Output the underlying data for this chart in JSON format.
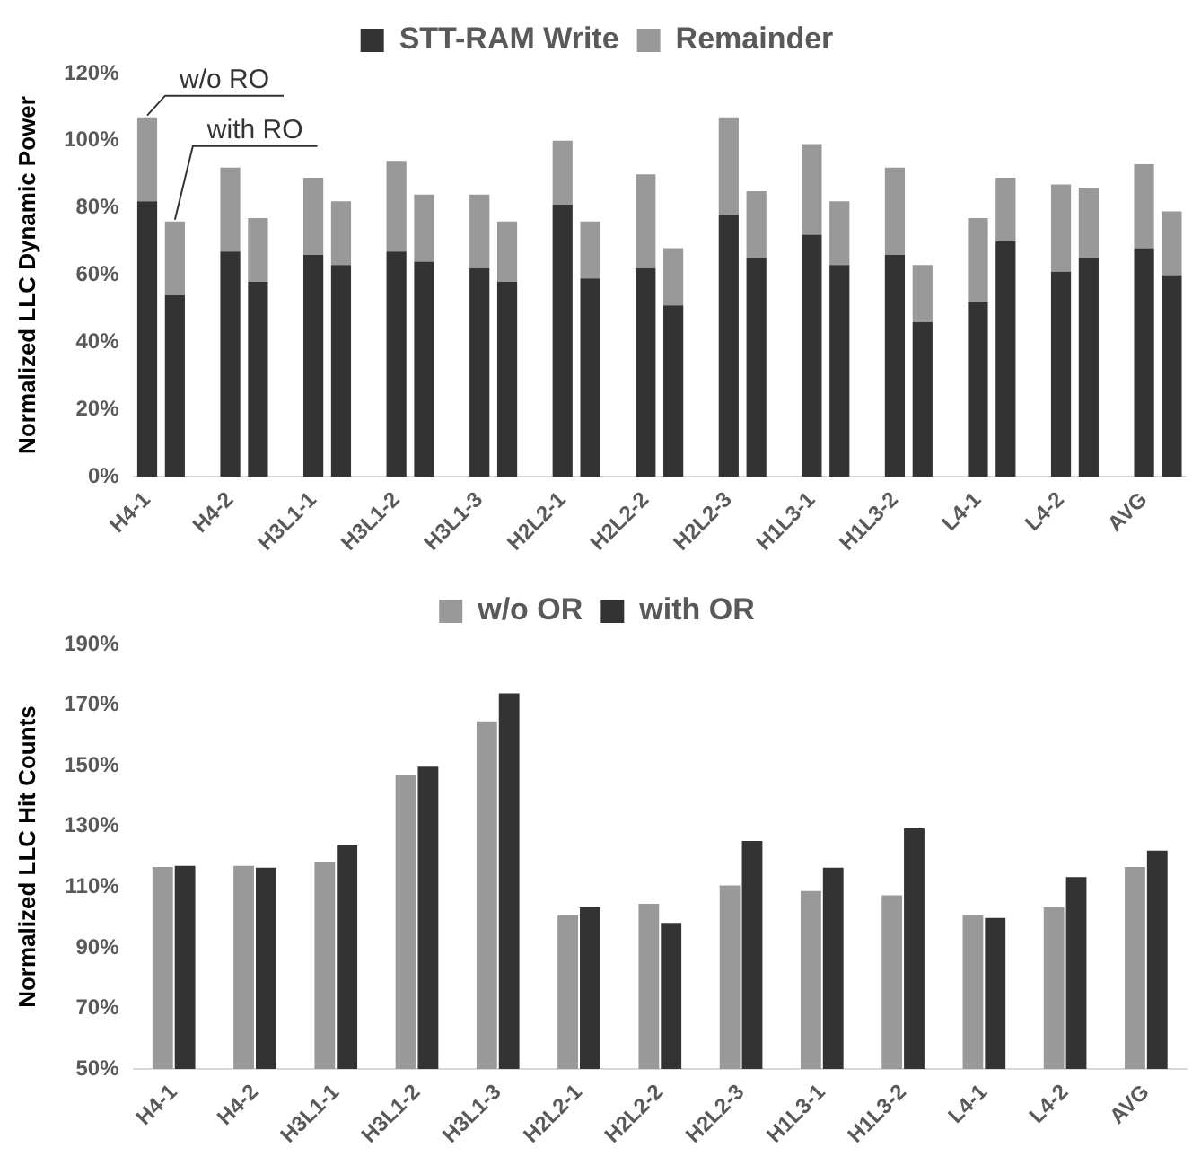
{
  "chart_data": [
    {
      "type": "bar",
      "stacked": true,
      "ylabel": "Normalized LLC Dynamic Power",
      "legend": "top",
      "grid": false,
      "categories": [
        "H4-1",
        null,
        null,
        "H4-2",
        null,
        null,
        "H3L1-1",
        null,
        null,
        "H3L1-2",
        null,
        null,
        "H3L1-3",
        null,
        null,
        "H2L2-1",
        null,
        null,
        "H2L2-2",
        null,
        null,
        "H2L2-3",
        null,
        null,
        "H1L3-1",
        null,
        null,
        "H1L3-2",
        null,
        null,
        "L4-1",
        null,
        null,
        "L4-2",
        null,
        null,
        "AVG",
        null
      ],
      "series": [
        {
          "name": "STT-RAM Write",
          "color": "#333333",
          "values": [
            82,
            54,
            null,
            67,
            58,
            null,
            66,
            63,
            null,
            67,
            64,
            null,
            62,
            58,
            null,
            81,
            59,
            null,
            62,
            51,
            null,
            78,
            65,
            null,
            72,
            63,
            null,
            66,
            46,
            null,
            52,
            70,
            null,
            61,
            65,
            null,
            68,
            60
          ]
        },
        {
          "name": "Remainder",
          "color": "#999999",
          "values": [
            25,
            22,
            null,
            25,
            19,
            null,
            23,
            19,
            null,
            27,
            20,
            null,
            22,
            18,
            null,
            19,
            17,
            null,
            28,
            17,
            null,
            29,
            20,
            null,
            27,
            19,
            null,
            26,
            17,
            null,
            25,
            19,
            null,
            26,
            21,
            null,
            25,
            19
          ]
        }
      ],
      "ylim": [
        0,
        120
      ],
      "yticks": [
        {
          "value": 0,
          "label": "0%"
        },
        {
          "value": 20,
          "label": "20%"
        },
        {
          "value": 40,
          "label": "40%"
        },
        {
          "value": 60,
          "label": "60%"
        },
        {
          "value": 80,
          "label": "80%"
        },
        {
          "value": 100,
          "label": "100%"
        },
        {
          "value": 120,
          "label": "120%"
        }
      ],
      "annotations": [
        {
          "text": "w/o RO",
          "x": "H4-1",
          "y": 107
        },
        {
          "text": "with RO",
          "y": 76
        }
      ]
    },
    {
      "type": "bar",
      "ylabel": "Normalized LLC Hit Counts",
      "legend": "top",
      "grid": false,
      "categories": [
        "H4-1",
        "H4-2",
        "H3L1-1",
        "H3L1-2",
        "H3L1-3",
        "H2L2-1",
        "H2L2-2",
        "H2L2-3",
        "H1L3-1",
        "H1L3-2",
        "L4-1",
        "L4-2",
        "AVG"
      ],
      "series": [
        {
          "name": "w/o OR",
          "color": "#999999",
          "values": [
            116.6,
            117,
            118.4,
            146.8,
            164.6,
            100.6,
            104.5,
            110.5,
            108.7,
            107.3,
            100.8,
            103.3,
            116.6
          ]
        },
        {
          "name": "with OR",
          "color": "#333333",
          "values": [
            117,
            116.4,
            123.8,
            149.7,
            173.9,
            103.3,
            98.2,
            125.2,
            116.4,
            129.3,
            99.8,
            113.3,
            122
          ]
        }
      ],
      "ylim": [
        50,
        190
      ],
      "yticks": [
        {
          "value": 50,
          "label": "50%"
        },
        {
          "value": 70,
          "label": "70%"
        },
        {
          "value": 90,
          "label": "90%"
        },
        {
          "value": 110,
          "label": "110%"
        },
        {
          "value": 130,
          "label": "130%"
        },
        {
          "value": 150,
          "label": "150%"
        },
        {
          "value": 170,
          "label": "170%"
        },
        {
          "value": 190,
          "label": "190%"
        }
      ]
    }
  ]
}
